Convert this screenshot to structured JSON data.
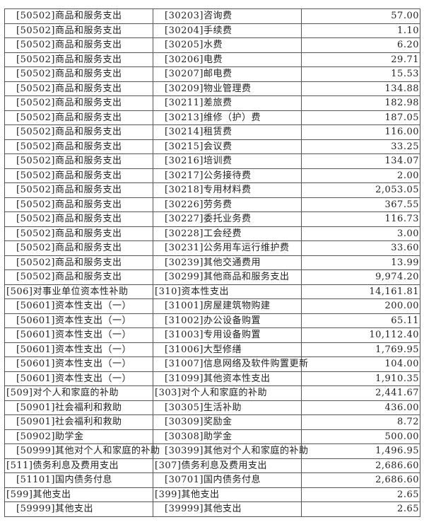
{
  "table": {
    "rows": [
      {
        "func": "[50502]商品和服务支出",
        "econ": "[30203]咨询费",
        "amount": "57.00",
        "level": 2
      },
      {
        "func": "[50502]商品和服务支出",
        "econ": "[30204]手续费",
        "amount": "1.10",
        "level": 2
      },
      {
        "func": "[50502]商品和服务支出",
        "econ": "[30205]水费",
        "amount": "6.20",
        "level": 2
      },
      {
        "func": "[50502]商品和服务支出",
        "econ": "[30206]电费",
        "amount": "29.71",
        "level": 2
      },
      {
        "func": "[50502]商品和服务支出",
        "econ": "[30207]邮电费",
        "amount": "15.53",
        "level": 2
      },
      {
        "func": "[50502]商品和服务支出",
        "econ": "[30209]物业管理费",
        "amount": "134.88",
        "level": 2
      },
      {
        "func": "[50502]商品和服务支出",
        "econ": "[30211]差旅费",
        "amount": "182.98",
        "level": 2
      },
      {
        "func": "[50502]商品和服务支出",
        "econ": "[30213]维修（护）费",
        "amount": "187.05",
        "level": 2
      },
      {
        "func": "[50502]商品和服务支出",
        "econ": "[30214]租赁费",
        "amount": "116.00",
        "level": 2
      },
      {
        "func": "[50502]商品和服务支出",
        "econ": "[30215]会议费",
        "amount": "33.25",
        "level": 2
      },
      {
        "func": "[50502]商品和服务支出",
        "econ": "[30216]培训费",
        "amount": "134.07",
        "level": 2
      },
      {
        "func": "[50502]商品和服务支出",
        "econ": "[30217]公务接待费",
        "amount": "2.00",
        "level": 2
      },
      {
        "func": "[50502]商品和服务支出",
        "econ": "[30218]专用材料费",
        "amount": "2,053.05",
        "level": 2
      },
      {
        "func": "[50502]商品和服务支出",
        "econ": "[30226]劳务费",
        "amount": "367.55",
        "level": 2
      },
      {
        "func": "[50502]商品和服务支出",
        "econ": "[30227]委托业务费",
        "amount": "116.73",
        "level": 2
      },
      {
        "func": "[50502]商品和服务支出",
        "econ": "[30228]工会经费",
        "amount": "3.00",
        "level": 2
      },
      {
        "func": "[50502]商品和服务支出",
        "econ": "[30231]公务用车运行维护费",
        "amount": "33.60",
        "level": 2
      },
      {
        "func": "[50502]商品和服务支出",
        "econ": "[30239]其他交通费用",
        "amount": "13.99",
        "level": 2
      },
      {
        "func": "[50502]商品和服务支出",
        "econ": "[30299]其他商品和服务支出",
        "amount": "9,974.20",
        "level": 2
      },
      {
        "func": "[506]对事业单位资本性补助",
        "econ": "[310]资本性支出",
        "amount": "14,161.81",
        "level": 1
      },
      {
        "func": "[50601]资本性支出（一）",
        "econ": "[31001]房屋建筑物购建",
        "amount": "200.00",
        "level": 2
      },
      {
        "func": "[50601]资本性支出（一）",
        "econ": "[31002]办公设备购置",
        "amount": "65.11",
        "level": 2
      },
      {
        "func": "[50601]资本性支出（一）",
        "econ": "[31003]专用设备购置",
        "amount": "10,112.40",
        "level": 2
      },
      {
        "func": "[50601]资本性支出（一）",
        "econ": "[31006]大型修缮",
        "amount": "1,769.95",
        "level": 2
      },
      {
        "func": "[50601]资本性支出（一）",
        "econ": "[31007]信息网络及软件购置更新",
        "amount": "104.00",
        "level": 2
      },
      {
        "func": "[50601]资本性支出（一）",
        "econ": "[31099]其他资本性支出",
        "amount": "1,910.35",
        "level": 2
      },
      {
        "func": "[509]对个人和家庭的补助",
        "econ": "[303]对个人和家庭的补助",
        "amount": "2,441.67",
        "level": 1
      },
      {
        "func": "[50901]社会福利和救助",
        "econ": "[30305]生活补助",
        "amount": "436.00",
        "level": 2
      },
      {
        "func": "[50901]社会福利和救助",
        "econ": "[30309]奖励金",
        "amount": "8.72",
        "level": 2
      },
      {
        "func": "[50902]助学金",
        "econ": "[30308]助学金",
        "amount": "500.00",
        "level": 2
      },
      {
        "func": "[50999]其他对个人和家庭的补助",
        "econ": "[30399]其他对个人和家庭的补助",
        "amount": "1,496.95",
        "level": 2
      },
      {
        "func": "[511]债务利息及费用支出",
        "econ": "[307]债务利息及费用支出",
        "amount": "2,686.60",
        "level": 1
      },
      {
        "func": "[51101]国内债务付息",
        "econ": "[30701]国内债务付息",
        "amount": "2,686.60",
        "level": 2
      },
      {
        "func": "[599]其他支出",
        "econ": "[399]其他支出",
        "amount": "2.65",
        "level": 1
      },
      {
        "func": "[59999]其他支出",
        "econ": "[39999]其他支出",
        "amount": "2.65",
        "level": 2
      }
    ]
  }
}
